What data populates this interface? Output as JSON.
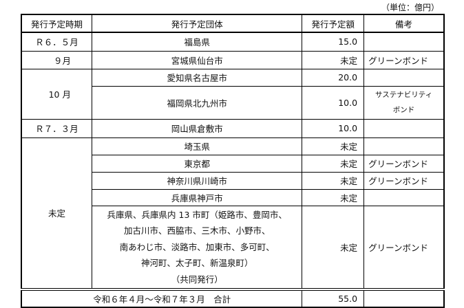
{
  "unit_label": "（単位：億円）",
  "headers": [
    "発行予定時期",
    "発行予定団体",
    "発行予定額",
    "備考"
  ],
  "rows": [
    {
      "period": "Ｒ６．５月",
      "issuer": "福島県",
      "amount": "15.0",
      "note": ""
    },
    {
      "period": "９月",
      "issuer": "宮城県仙台市",
      "amount": "未定",
      "note": "グリーンボンド"
    },
    {
      "period": "10 月",
      "issuer": "愛知県名古屋市",
      "amount": "20.0",
      "note": ""
    },
    {
      "period": "",
      "issuer": "福岡県北九州市",
      "amount": "10.0",
      "note": "サステナビリティ",
      "note2": "ボンド"
    },
    {
      "period": "Ｒ７．３月",
      "issuer": "岡山県倉敷市",
      "amount": "10.0",
      "note": ""
    },
    {
      "period": "未定",
      "issuer": "埼玉県",
      "amount": "未定",
      "note": ""
    },
    {
      "period": "",
      "issuer": "東京都",
      "amount": "未定",
      "note": "グリーンボンド"
    },
    {
      "period": "",
      "issuer": "神奈川県川崎市",
      "amount": "未定",
      "note": "グリーンボンド"
    },
    {
      "period": "",
      "issuer": "兵庫県神戸市",
      "amount": "未定",
      "note": ""
    },
    {
      "period": "",
      "issuer_lines": [
        "兵庫県、兵庫県内 13 市町（姫路市、豊岡市、",
        "加古川市、西脇市、三木市、小野市、",
        "南あわじ市、淡路市、加東市、多可町、",
        "神河町、太子町、新温泉町）",
        "（共同発行）"
      ],
      "amount": "未定",
      "note": "グリーンボンド"
    }
  ],
  "total": {
    "label": "令和６年４月～令和７年３月　合計",
    "amount": "55.0",
    "note": ""
  }
}
